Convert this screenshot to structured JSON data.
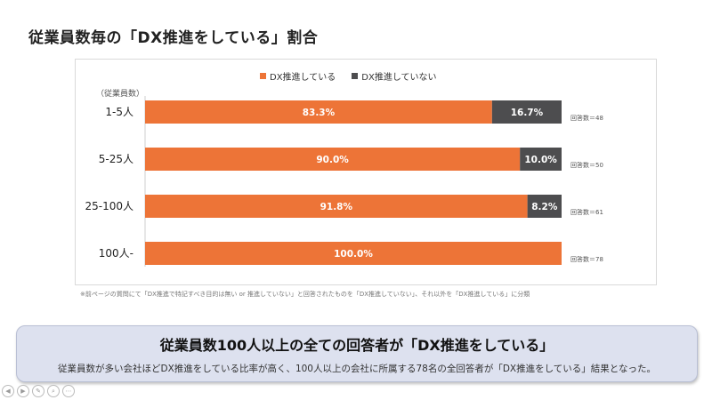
{
  "slide": {
    "title": "従業員数毎の「DX推進をしている」割合",
    "axis_caption": "（従業員数）",
    "footnote": "※前ページの質問にて「DX推進で特記すべき目的は無い or 推進していない」と回答されたものを「DX推進していない」、それ以外を「DX推進している」に分類"
  },
  "legend": [
    {
      "label": "DX推進している",
      "color": "#ed7437"
    },
    {
      "label": "DX推進していない",
      "color": "#4d4d4f"
    }
  ],
  "chart_data": {
    "type": "bar",
    "orientation": "horizontal",
    "stacked": true,
    "categories": [
      "1-5人",
      "5-25人",
      "25-100人",
      "100人-"
    ],
    "series": [
      {
        "name": "DX推進している",
        "values": [
          83.3,
          90.0,
          91.8,
          100.0
        ],
        "labels": [
          "83.3%",
          "90.0%",
          "91.8%",
          "100.0%"
        ],
        "color": "#ed7437"
      },
      {
        "name": "DX推進していない",
        "values": [
          16.7,
          10.0,
          8.2,
          0
        ],
        "labels": [
          "16.7%",
          "10.0%",
          "8.2%",
          ""
        ],
        "color": "#4d4d4f"
      }
    ],
    "annotations": [
      "回答数＝48",
      "回答数＝50",
      "回答数＝61",
      "回答数＝78"
    ],
    "xlim": [
      0,
      100
    ],
    "grid": false,
    "legend_position": "top"
  },
  "summary": {
    "headline": "従業員数100人以上の全ての回答者が「DX推進をしている」",
    "detail": "従業員数が多い会社ほどDX推進をしている比率が高く、100人以上の会社に所属する78名の全回答者が「DX推進をしている」結果となった。"
  },
  "nav": [
    {
      "icon": "prev-arrow-icon",
      "glyph": "◀"
    },
    {
      "icon": "next-arrow-icon",
      "glyph": "▶"
    },
    {
      "icon": "pen-icon",
      "glyph": "✎"
    },
    {
      "icon": "zoom-icon",
      "glyph": "⌕"
    },
    {
      "icon": "menu-icon",
      "glyph": "⋯"
    }
  ]
}
